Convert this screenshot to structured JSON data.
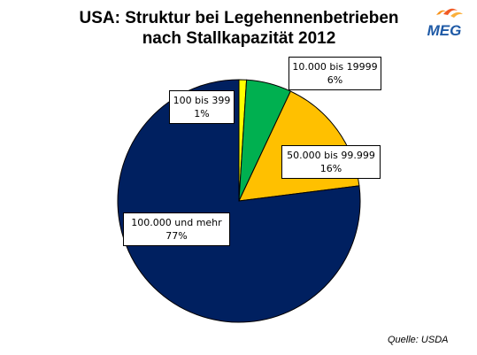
{
  "header": {
    "title_line1": "USA: Struktur bei Legehennenbetrieben",
    "title_line2": "nach Stallkapazität 2012",
    "logo_text": "MEG"
  },
  "source": "Quelle: USDA",
  "colors": {
    "yellow": "#FFFF00",
    "green": "#00B050",
    "amber": "#FFC000",
    "navy": "#002060"
  },
  "chart_data": {
    "type": "pie",
    "title": "USA: Struktur bei Legehennenbetrieben nach Stallkapazität 2012",
    "slices": [
      {
        "label": "100 bis 399",
        "value": 1,
        "display": "1%",
        "color": "#FFFF00"
      },
      {
        "label": "10.000 bis 19999",
        "value": 6,
        "display": "6%",
        "color": "#00B050"
      },
      {
        "label": "50.000 bis 99.999",
        "value": 16,
        "display": "16%",
        "color": "#FFC000"
      },
      {
        "label": "100.000 und mehr",
        "value": 77,
        "display": "77%",
        "color": "#002060"
      }
    ]
  }
}
